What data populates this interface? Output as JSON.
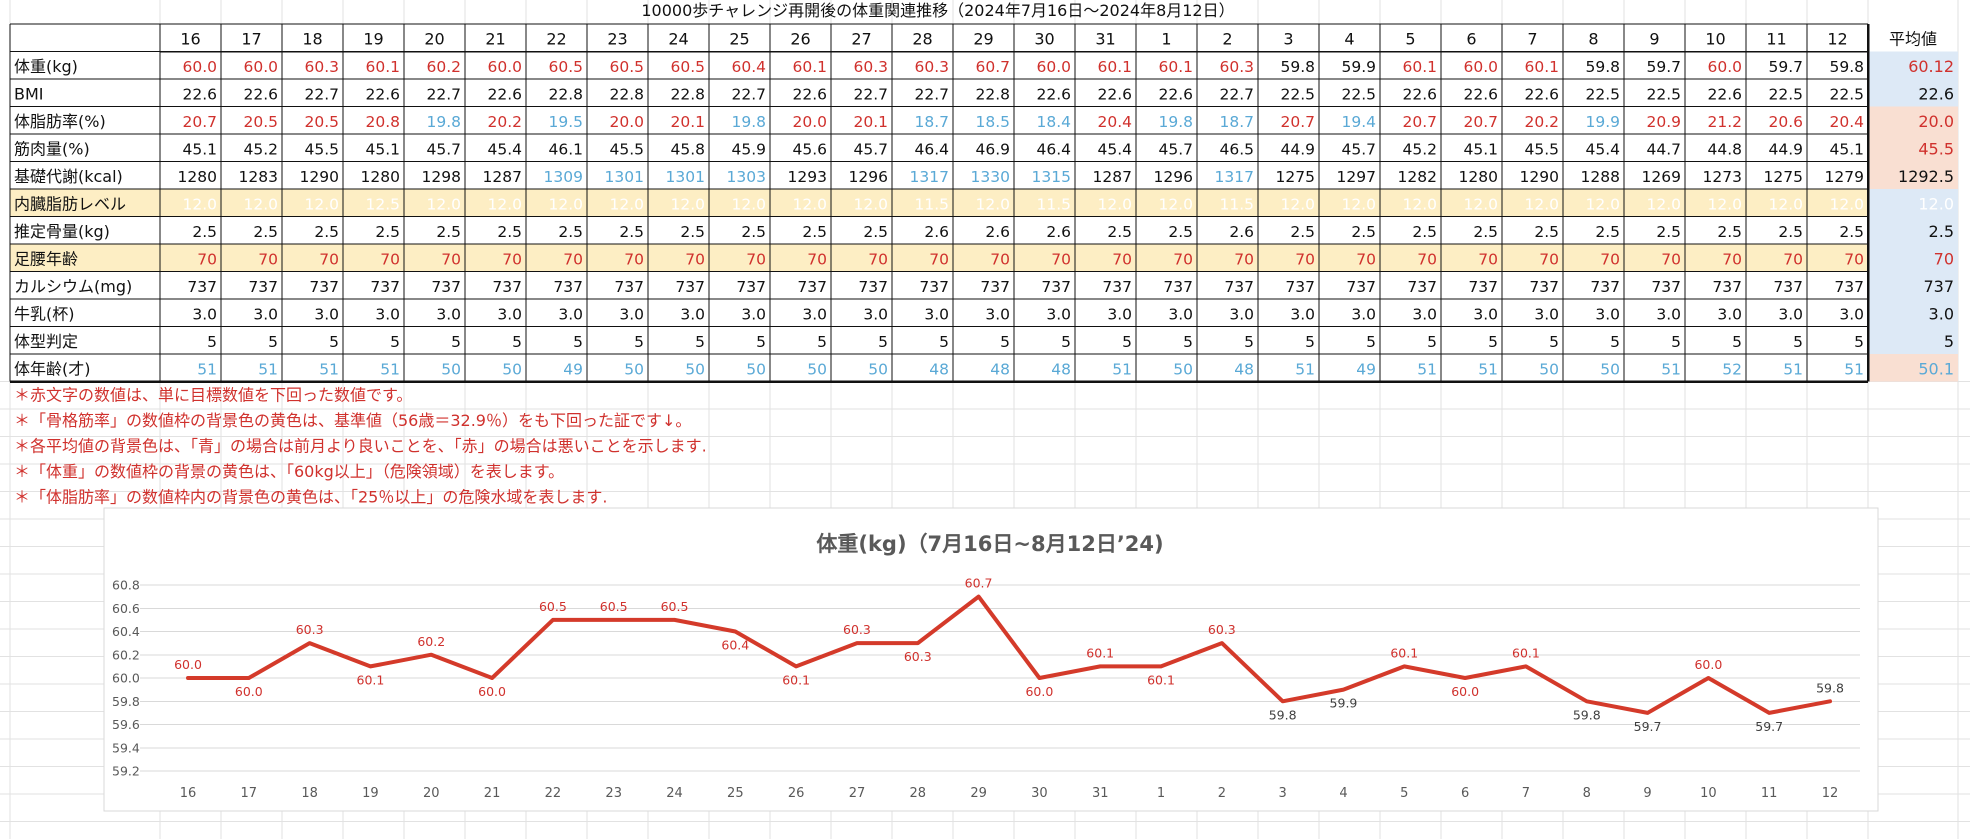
{
  "sheet_title": "10000歩チャレンジ再開後の体重関連推移（2024年7月16日～2024年8月12日）",
  "days": [
    "16",
    "17",
    "18",
    "19",
    "20",
    "21",
    "22",
    "23",
    "24",
    "25",
    "26",
    "27",
    "28",
    "29",
    "30",
    "31",
    "1",
    "2",
    "3",
    "4",
    "5",
    "6",
    "7",
    "8",
    "9",
    "10",
    "11",
    "12"
  ],
  "avg_header": "平均値",
  "colors": {
    "red": "#d0312d",
    "blue": "#5aa9d6",
    "black": "#111111",
    "yellow_bg": "#fdeec4",
    "avg_blue_bg": "#dde9f6",
    "avg_red_bg": "#f9dfd2",
    "line": "#d43a2a"
  },
  "rows": [
    {
      "label": "体重(kg)",
      "values": [
        "60.0",
        "60.0",
        "60.3",
        "60.1",
        "60.2",
        "60.0",
        "60.5",
        "60.5",
        "60.5",
        "60.4",
        "60.1",
        "60.3",
        "60.3",
        "60.7",
        "60.0",
        "60.1",
        "60.1",
        "60.3",
        "59.8",
        "59.9",
        "60.1",
        "60.0",
        "60.1",
        "59.8",
        "59.7",
        "60.0",
        "59.7",
        "59.8"
      ],
      "colors": "rrrrrrrrrrrrrrrrrrkkrrrkkrkk",
      "bg": "none",
      "avg": "60.12",
      "avg_color": "red",
      "avg_bg": "blue"
    },
    {
      "label": "BMI",
      "values": [
        "22.6",
        "22.6",
        "22.7",
        "22.6",
        "22.7",
        "22.6",
        "22.8",
        "22.8",
        "22.8",
        "22.7",
        "22.6",
        "22.7",
        "22.7",
        "22.8",
        "22.6",
        "22.6",
        "22.6",
        "22.7",
        "22.5",
        "22.5",
        "22.6",
        "22.6",
        "22.6",
        "22.5",
        "22.5",
        "22.6",
        "22.5",
        "22.5"
      ],
      "colors": "kkkkkkkkkkkkkkkkkkkkkkkkkkkk",
      "bg": "none",
      "avg": "22.6",
      "avg_color": "black",
      "avg_bg": "blue"
    },
    {
      "label": "体脂肪率(%)",
      "values": [
        "20.7",
        "20.5",
        "20.5",
        "20.8",
        "19.8",
        "20.2",
        "19.5",
        "20.0",
        "20.1",
        "19.8",
        "20.0",
        "20.1",
        "18.7",
        "18.5",
        "18.4",
        "20.4",
        "19.8",
        "18.7",
        "20.7",
        "19.4",
        "20.7",
        "20.7",
        "20.2",
        "19.9",
        "20.9",
        "21.2",
        "20.6",
        "20.4"
      ],
      "colors": "rrrrbrbrrbrrbbbrbbrbrrrbrrrr",
      "bg": "none",
      "avg": "20.0",
      "avg_color": "red",
      "avg_bg": "red"
    },
    {
      "label": "筋肉量(%)",
      "values": [
        "45.1",
        "45.2",
        "45.5",
        "45.1",
        "45.7",
        "45.4",
        "46.1",
        "45.5",
        "45.8",
        "45.9",
        "45.6",
        "45.7",
        "46.4",
        "46.9",
        "46.4",
        "45.4",
        "45.7",
        "46.5",
        "44.9",
        "45.7",
        "45.2",
        "45.1",
        "45.5",
        "45.4",
        "44.7",
        "44.8",
        "44.9",
        "45.1"
      ],
      "colors": "kkkkkkkkkkkkkkkkkkkkkkkkkkkk",
      "bg": "none",
      "avg": "45.5",
      "avg_color": "red",
      "avg_bg": "red"
    },
    {
      "label": "基礎代謝(kcal)",
      "values": [
        "1280",
        "1283",
        "1290",
        "1280",
        "1298",
        "1287",
        "1309",
        "1301",
        "1301",
        "1303",
        "1293",
        "1296",
        "1317",
        "1330",
        "1315",
        "1287",
        "1296",
        "1317",
        "1275",
        "1297",
        "1282",
        "1280",
        "1290",
        "1288",
        "1269",
        "1273",
        "1275",
        "1279"
      ],
      "colors": "kkkkkkbbbbkkbbbkkbkkkkkkkkkk",
      "bg": "none",
      "avg": "1292.5",
      "avg_color": "black",
      "avg_bg": "red"
    },
    {
      "label": "内臓脂肪レベル",
      "values": [
        "12.0",
        "12.0",
        "12.0",
        "12.5",
        "12.0",
        "12.0",
        "12.0",
        "12.0",
        "12.0",
        "12.0",
        "12.0",
        "12.0",
        "11.5",
        "12.0",
        "11.5",
        "12.0",
        "12.0",
        "11.5",
        "12.0",
        "12.0",
        "12.0",
        "12.0",
        "12.0",
        "12.0",
        "12.0",
        "12.0",
        "12.0",
        "12.0"
      ],
      "colors": "wwwwwwwwwwwwwwwwwwwwwwwwwwww",
      "bg": "yellow",
      "avg": "12.0",
      "avg_color": "white",
      "avg_bg": "blue"
    },
    {
      "label": "推定骨量(kg)",
      "values": [
        "2.5",
        "2.5",
        "2.5",
        "2.5",
        "2.5",
        "2.5",
        "2.5",
        "2.5",
        "2.5",
        "2.5",
        "2.5",
        "2.5",
        "2.6",
        "2.6",
        "2.6",
        "2.5",
        "2.5",
        "2.6",
        "2.5",
        "2.5",
        "2.5",
        "2.5",
        "2.5",
        "2.5",
        "2.5",
        "2.5",
        "2.5",
        "2.5"
      ],
      "colors": "kkkkkkkkkkkkkkkkkkkkkkkkkkkk",
      "bg": "none",
      "avg": "2.5",
      "avg_color": "black",
      "avg_bg": "blue"
    },
    {
      "label": "足腰年齢",
      "values": [
        "70",
        "70",
        "70",
        "70",
        "70",
        "70",
        "70",
        "70",
        "70",
        "70",
        "70",
        "70",
        "70",
        "70",
        "70",
        "70",
        "70",
        "70",
        "70",
        "70",
        "70",
        "70",
        "70",
        "70",
        "70",
        "70",
        "70",
        "70"
      ],
      "colors": "rrrrrrrrrrrrrrrrrrrrrrrrrrrr",
      "bg": "yellow",
      "avg": "70",
      "avg_color": "red",
      "avg_bg": "blue"
    },
    {
      "label": "カルシウム(mg)",
      "values": [
        "737",
        "737",
        "737",
        "737",
        "737",
        "737",
        "737",
        "737",
        "737",
        "737",
        "737",
        "737",
        "737",
        "737",
        "737",
        "737",
        "737",
        "737",
        "737",
        "737",
        "737",
        "737",
        "737",
        "737",
        "737",
        "737",
        "737",
        "737"
      ],
      "colors": "kkkkkkkkkkkkkkkkkkkkkkkkkkkk",
      "bg": "none",
      "avg": "737",
      "avg_color": "black",
      "avg_bg": "blue"
    },
    {
      "label": "牛乳(杯)",
      "values": [
        "3.0",
        "3.0",
        "3.0",
        "3.0",
        "3.0",
        "3.0",
        "3.0",
        "3.0",
        "3.0",
        "3.0",
        "3.0",
        "3.0",
        "3.0",
        "3.0",
        "3.0",
        "3.0",
        "3.0",
        "3.0",
        "3.0",
        "3.0",
        "3.0",
        "3.0",
        "3.0",
        "3.0",
        "3.0",
        "3.0",
        "3.0",
        "3.0"
      ],
      "colors": "kkkkkkkkkkkkkkkkkkkkkkkkkkkk",
      "bg": "none",
      "avg": "3.0",
      "avg_color": "black",
      "avg_bg": "blue"
    },
    {
      "label": "体型判定",
      "values": [
        "5",
        "5",
        "5",
        "5",
        "5",
        "5",
        "5",
        "5",
        "5",
        "5",
        "5",
        "5",
        "5",
        "5",
        "5",
        "5",
        "5",
        "5",
        "5",
        "5",
        "5",
        "5",
        "5",
        "5",
        "5",
        "5",
        "5",
        "5"
      ],
      "colors": "kkkkkkkkkkkkkkkkkkkkkkkkkkkk",
      "bg": "none",
      "avg": "5",
      "avg_color": "black",
      "avg_bg": "blue"
    },
    {
      "label": "体年齢(才)",
      "values": [
        "51",
        "51",
        "51",
        "51",
        "50",
        "50",
        "49",
        "50",
        "50",
        "50",
        "50",
        "50",
        "48",
        "48",
        "48",
        "51",
        "50",
        "48",
        "51",
        "49",
        "51",
        "51",
        "50",
        "50",
        "51",
        "52",
        "51",
        "51"
      ],
      "colors": "bbbbbbbbbbbbbbbbbbbbbbbbbbbb",
      "bg": "none",
      "avg": "50.1",
      "avg_color": "blue",
      "avg_bg": "red"
    }
  ],
  "notes": [
    "＊赤文字の数値は、単に目標数値を下回った数値です。",
    "＊「骨格筋率」の数値枠の背景色の黄色は、基準値（56歳＝32.9％）をも下回った証です↓。",
    "＊各平均値の背景色は、「青」の場合は前月より良いことを、「赤」の場合は悪いことを示します.",
    "＊「体重」の数値枠の背景の黄色は、「60kg以上」（危険領域）を表します。",
    "＊「体脂肪率」の数値枠内の背景色の黄色は、「25％以上」の危険水域を表します."
  ],
  "chart_data": {
    "type": "line",
    "title": "体重(kg)（7月16日~8月12日’24)",
    "xlabel": "",
    "ylabel": "",
    "categories": [
      "16",
      "17",
      "18",
      "19",
      "20",
      "21",
      "22",
      "23",
      "24",
      "25",
      "26",
      "27",
      "28",
      "29",
      "30",
      "31",
      "1",
      "2",
      "3",
      "4",
      "5",
      "6",
      "7",
      "8",
      "9",
      "10",
      "11",
      "12"
    ],
    "series": [
      {
        "values": [
          60.0,
          60.0,
          60.3,
          60.1,
          60.2,
          60.0,
          60.5,
          60.5,
          60.5,
          60.4,
          60.1,
          60.3,
          60.3,
          60.7,
          60.0,
          60.1,
          60.1,
          60.3,
          59.8,
          59.9,
          60.1,
          60.0,
          60.1,
          59.8,
          59.7,
          60.0,
          59.7,
          59.8
        ]
      }
    ],
    "data_labels": [
      "60.0",
      "60.0",
      "60.3",
      "60.1",
      "60.2",
      "60.0",
      "60.5",
      "60.5",
      "60.5",
      "60.4",
      "60.1",
      "60.3",
      "60.3",
      "60.7",
      "60.0",
      "60.1",
      "60.1",
      "60.3",
      "59.8",
      "59.9",
      "60.1",
      "60.0",
      "60.1",
      "59.8",
      "59.7",
      "60.0",
      "59.7",
      "59.8"
    ],
    "yticks": [
      "59.2",
      "59.4",
      "59.6",
      "59.8",
      "60.0",
      "60.2",
      "60.4",
      "60.6",
      "60.8"
    ],
    "ylim": [
      59.2,
      60.8
    ],
    "grid": true,
    "legend": "none"
  }
}
